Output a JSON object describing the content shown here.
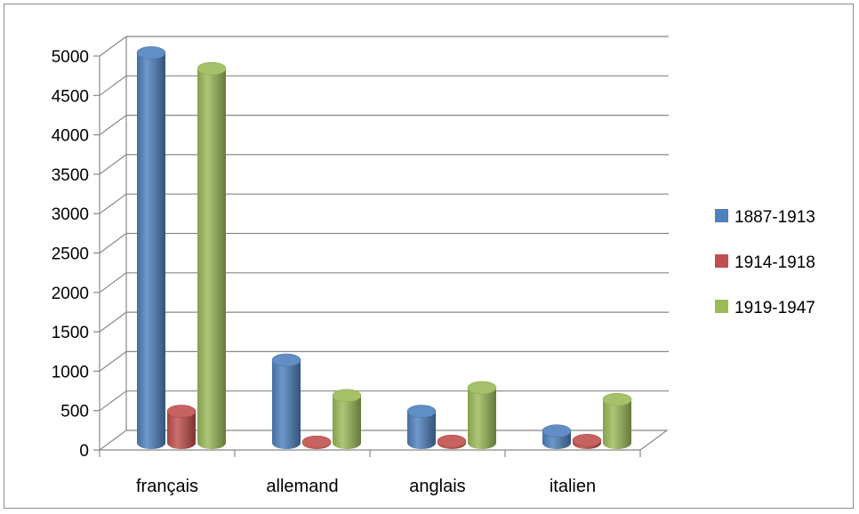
{
  "chart_data": {
    "type": "bar",
    "categories": [
      "français",
      "allemand",
      "anglais",
      "italien"
    ],
    "series": [
      {
        "name": "1887-1913",
        "values": [
          4950,
          1050,
          400,
          150
        ],
        "color": "#4f81bd"
      },
      {
        "name": "1914-1918",
        "values": [
          400,
          10,
          20,
          30
        ],
        "color": "#c0504d"
      },
      {
        "name": "1919-1947",
        "values": [
          4750,
          600,
          700,
          550
        ],
        "color": "#9bbb59"
      }
    ],
    "yticks": [
      "0",
      "500",
      "1000",
      "1500",
      "2000",
      "2500",
      "3000",
      "3500",
      "4000",
      "4500",
      "5000"
    ],
    "ylim": [
      0,
      5000
    ],
    "grid": true,
    "legend_position": "right",
    "style": "3d-cylinder"
  }
}
